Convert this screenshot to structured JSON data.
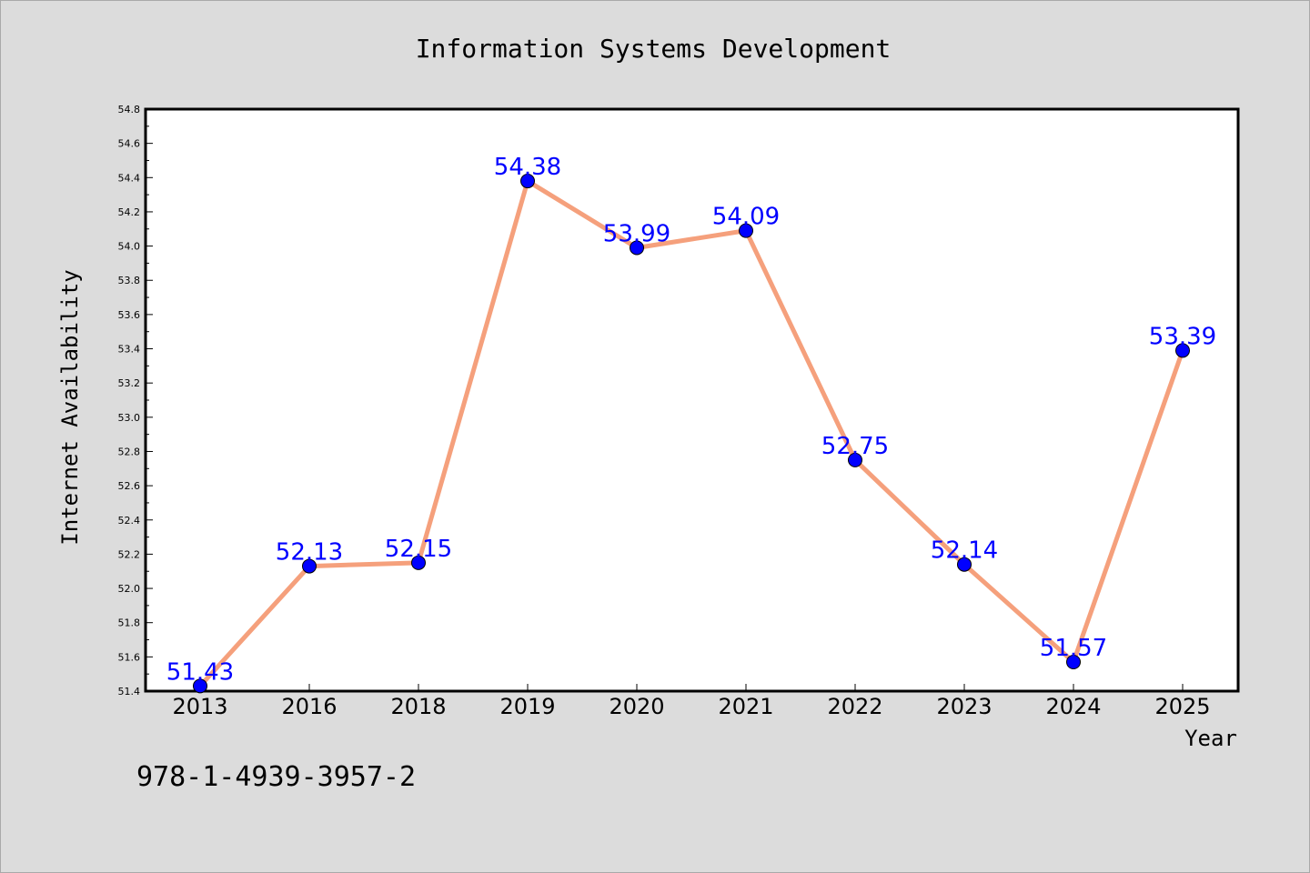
{
  "chart_data": {
    "type": "line",
    "title": "Information Systems Development",
    "xlabel": "Year",
    "ylabel": "Internet Availability",
    "categories": [
      "2013",
      "2016",
      "2018",
      "2019",
      "2020",
      "2021",
      "2022",
      "2023",
      "2024",
      "2025"
    ],
    "series": [
      {
        "values": [
          51.43,
          52.13,
          52.15,
          54.38,
          53.99,
          54.09,
          52.75,
          52.14,
          51.57,
          53.39
        ],
        "labels": [
          "51.43",
          "52.13",
          "52.15",
          "54.38",
          "53.99",
          "54.09",
          "52.75",
          "52.14",
          "51.57",
          "53.39"
        ],
        "line_color": "#f5a07c",
        "marker_color": "#0000ff"
      }
    ],
    "ylim": [
      51.4,
      54.8
    ],
    "yticks": [
      "51.4",
      "51.6",
      "51.8",
      "52.0",
      "52.2",
      "52.4",
      "52.6",
      "52.8",
      "53.0",
      "53.2",
      "53.4",
      "53.6",
      "53.8",
      "54.0",
      "54.2",
      "54.4",
      "54.6",
      "54.8"
    ],
    "grid": false,
    "legend": "none"
  },
  "footer": {
    "isbn": "978-1-4939-3957-2"
  },
  "colors": {
    "background": "#dcdcdc",
    "plot_background": "#ffffff",
    "line": "#f5a07c",
    "marker": "#0000ff",
    "label": "#0000ff"
  }
}
